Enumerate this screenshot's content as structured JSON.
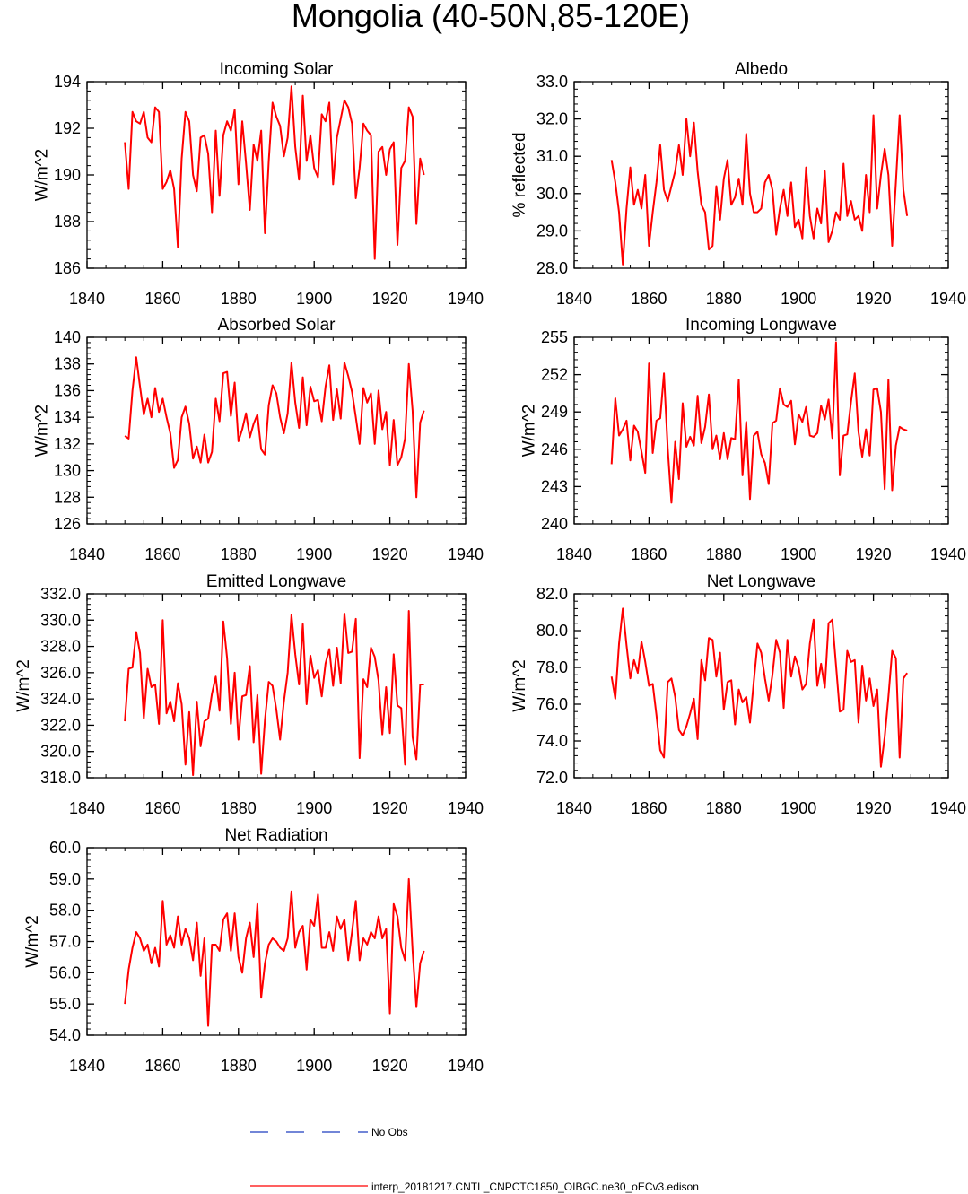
{
  "figure": {
    "title": "Mongolia (40-50N,85-120E)"
  },
  "chart_data": [
    {
      "type": "line",
      "title": "Incoming Solar",
      "xlabel": "",
      "ylabel": "W/m^2",
      "xlim": [
        1840,
        1940
      ],
      "ylim": [
        186,
        194
      ],
      "xticks": [
        "1840",
        "1860",
        "1880",
        "1900",
        "1920",
        "1940"
      ],
      "yticks": [
        "186",
        "188",
        "190",
        "192",
        "194"
      ],
      "x_start": 1850,
      "series": [
        {
          "name": "interp_20181217.CNTL_CNPCTC1850_OIBGC.ne30_oECv3.edison",
          "color": "#ff0000",
          "values": [
            191.4,
            189.4,
            192.7,
            192.3,
            192.2,
            192.7,
            191.6,
            191.4,
            192.9,
            192.7,
            189.4,
            189.7,
            190.2,
            189.4,
            186.9,
            190.7,
            192.7,
            192.3,
            190.0,
            189.3,
            191.6,
            191.7,
            190.9,
            188.4,
            191.9,
            189.1,
            191.7,
            192.3,
            191.9,
            192.8,
            189.6,
            192.3,
            190.5,
            188.5,
            191.3,
            190.6,
            191.9,
            187.5,
            190.6,
            193.1,
            192.5,
            192.1,
            190.8,
            191.6,
            193.8,
            191.2,
            189.8,
            193.4,
            190.6,
            191.7,
            190.3,
            189.9,
            192.6,
            192.3,
            193.1,
            189.6,
            191.6,
            192.4,
            193.2,
            192.9,
            192.2,
            189.0,
            190.3,
            192.2,
            191.9,
            191.7,
            186.4,
            191.0,
            191.2,
            190.0,
            191.1,
            191.4,
            187.0,
            190.3,
            190.6,
            192.9,
            192.5,
            187.9,
            190.7,
            190.0
          ]
        }
      ]
    },
    {
      "type": "line",
      "title": "Albedo",
      "xlabel": "",
      "ylabel": "% reflected",
      "xlim": [
        1840,
        1940
      ],
      "ylim": [
        28.0,
        33.0
      ],
      "xticks": [
        "1840",
        "1860",
        "1880",
        "1900",
        "1920",
        "1940"
      ],
      "yticks": [
        "28.0",
        "29.0",
        "30.0",
        "31.0",
        "32.0",
        "33.0"
      ],
      "x_start": 1850,
      "series": [
        {
          "name": "interp_20181217.CNTL_CNPCTC1850_OIBGC.ne30_oECv3.edison",
          "color": "#ff0000",
          "values": [
            30.9,
            30.3,
            29.5,
            28.1,
            29.6,
            30.7,
            29.7,
            30.1,
            29.6,
            30.5,
            28.6,
            29.5,
            30.3,
            31.3,
            30.1,
            29.8,
            30.2,
            30.6,
            31.3,
            30.5,
            32.0,
            31.0,
            31.9,
            30.6,
            29.7,
            29.5,
            28.5,
            28.6,
            30.2,
            29.3,
            30.4,
            30.9,
            29.7,
            29.9,
            30.4,
            29.7,
            31.6,
            30.0,
            29.5,
            29.5,
            29.6,
            30.3,
            30.5,
            30.1,
            28.9,
            29.6,
            30.1,
            29.4,
            30.3,
            29.1,
            29.3,
            28.8,
            30.7,
            29.4,
            28.8,
            29.6,
            29.2,
            30.6,
            28.7,
            29.0,
            29.5,
            29.3,
            30.8,
            29.4,
            29.8,
            29.3,
            29.4,
            29.0,
            30.5,
            29.5,
            32.1,
            29.6,
            30.5,
            31.2,
            30.5,
            28.6,
            30.3,
            32.1,
            30.1,
            29.4
          ]
        }
      ]
    },
    {
      "type": "line",
      "title": "Absorbed Solar",
      "xlabel": "",
      "ylabel": "W/m^2",
      "xlim": [
        1840,
        1940
      ],
      "ylim": [
        126,
        140
      ],
      "xticks": [
        "1840",
        "1860",
        "1880",
        "1900",
        "1920",
        "1940"
      ],
      "yticks": [
        "126",
        "128",
        "130",
        "132",
        "134",
        "136",
        "138",
        "140"
      ],
      "x_start": 1850,
      "series": [
        {
          "name": "interp_20181217.CNTL_CNPCTC1850_OIBGC.ne30_oECv3.edison",
          "color": "#ff0000",
          "values": [
            132.6,
            132.4,
            136.0,
            138.5,
            136.3,
            134.2,
            135.4,
            134.0,
            136.2,
            134.4,
            135.4,
            134.0,
            132.8,
            130.2,
            130.8,
            134.0,
            134.8,
            133.5,
            130.9,
            131.8,
            130.6,
            132.7,
            130.6,
            131.4,
            135.4,
            133.7,
            137.3,
            137.4,
            134.1,
            136.6,
            132.2,
            133.1,
            134.3,
            132.5,
            133.5,
            134.2,
            131.6,
            131.2,
            134.9,
            136.4,
            135.8,
            134.0,
            132.8,
            134.3,
            138.1,
            135.1,
            133.2,
            137.0,
            133.4,
            136.3,
            135.2,
            135.3,
            133.7,
            136.3,
            137.9,
            133.8,
            136.1,
            133.9,
            138.1,
            137.1,
            135.9,
            134.0,
            132.0,
            136.2,
            135.1,
            135.8,
            132.0,
            136.0,
            133.1,
            134.4,
            130.4,
            133.8,
            130.4,
            131.0,
            132.4,
            138.0,
            134.5,
            128.0,
            133.6,
            134.5
          ]
        }
      ]
    },
    {
      "type": "line",
      "title": "Incoming Longwave",
      "xlabel": "",
      "ylabel": "W/m^2",
      "xlim": [
        1840,
        1940
      ],
      "ylim": [
        240,
        255
      ],
      "xticks": [
        "1840",
        "1860",
        "1880",
        "1900",
        "1920",
        "1940"
      ],
      "yticks": [
        "240",
        "243",
        "246",
        "249",
        "252",
        "255"
      ],
      "x_start": 1850,
      "series": [
        {
          "name": "interp_20181217.CNTL_CNPCTC1850_OIBGC.ne30_oECv3.edison",
          "color": "#ff0000",
          "values": [
            244.8,
            250.1,
            247.1,
            247.6,
            248.3,
            245.1,
            247.9,
            247.4,
            245.8,
            244.1,
            252.9,
            245.7,
            248.3,
            248.5,
            252.1,
            246.1,
            241.7,
            246.6,
            243.6,
            249.7,
            246.2,
            247.0,
            246.3,
            250.3,
            246.5,
            247.8,
            250.4,
            246.0,
            247.1,
            245.2,
            247.3,
            245.2,
            246.9,
            246.8,
            251.6,
            243.9,
            248.2,
            242.0,
            247.1,
            247.4,
            245.6,
            244.9,
            243.2,
            248.1,
            248.3,
            250.9,
            249.6,
            249.4,
            249.9,
            246.4,
            248.8,
            248.2,
            249.4,
            247.1,
            247.0,
            247.3,
            249.5,
            248.4,
            250.0,
            246.9,
            254.6,
            243.9,
            247.1,
            247.2,
            249.8,
            252.1,
            247.4,
            245.4,
            247.6,
            245.5,
            250.8,
            250.9,
            249.0,
            242.8,
            251.6,
            242.7,
            246.3,
            247.8,
            247.6,
            247.5
          ]
        }
      ]
    },
    {
      "type": "line",
      "title": "Emitted Longwave",
      "xlabel": "",
      "ylabel": "W/m^2",
      "xlim": [
        1840,
        1940
      ],
      "ylim": [
        318.0,
        332.0
      ],
      "xticks": [
        "1840",
        "1860",
        "1880",
        "1900",
        "1920",
        "1940"
      ],
      "yticks": [
        "318.0",
        "320.0",
        "322.0",
        "324.0",
        "326.0",
        "328.0",
        "330.0",
        "332.0"
      ],
      "x_start": 1850,
      "series": [
        {
          "name": "interp_20181217.CNTL_CNPCTC1850_OIBGC.ne30_oECv3.edison",
          "color": "#ff0000",
          "values": [
            322.3,
            326.3,
            326.4,
            329.1,
            327.5,
            322.5,
            326.3,
            324.9,
            325.1,
            322.1,
            330.0,
            322.9,
            323.8,
            322.3,
            325.2,
            323.6,
            319.0,
            323.0,
            318.2,
            323.8,
            320.4,
            322.3,
            322.5,
            324.4,
            325.7,
            323.1,
            329.9,
            327.1,
            322.1,
            326.0,
            320.9,
            324.2,
            324.3,
            326.5,
            320.7,
            324.3,
            318.3,
            322.4,
            325.3,
            325.0,
            323.2,
            320.9,
            323.8,
            326.0,
            330.4,
            327.4,
            325.1,
            329.7,
            323.6,
            327.3,
            325.6,
            326.2,
            324.2,
            326.7,
            327.8,
            325.0,
            327.9,
            325.2,
            330.5,
            327.5,
            327.6,
            330.1,
            319.5,
            325.5,
            324.9,
            327.9,
            327.2,
            325.4,
            321.3,
            324.9,
            321.4,
            327.4,
            323.5,
            323.3,
            319.0,
            330.7,
            321.1,
            319.4,
            325.1,
            325.1
          ]
        }
      ]
    },
    {
      "type": "line",
      "title": "Net Longwave",
      "xlabel": "",
      "ylabel": "W/m^2",
      "xlim": [
        1840,
        1940
      ],
      "ylim": [
        72.0,
        82.0
      ],
      "xticks": [
        "1840",
        "1860",
        "1880",
        "1900",
        "1920",
        "1940"
      ],
      "yticks": [
        "72.0",
        "74.0",
        "76.0",
        "78.0",
        "80.0",
        "82.0"
      ],
      "x_start": 1850,
      "series": [
        {
          "name": "interp_20181217.CNTL_CNPCTC1850_OIBGC.ne30_oECv3.edison",
          "color": "#ff0000",
          "values": [
            77.5,
            76.3,
            79.3,
            81.2,
            79.2,
            77.4,
            78.4,
            77.7,
            79.4,
            78.3,
            77.0,
            77.1,
            75.4,
            73.5,
            73.1,
            77.2,
            77.4,
            76.4,
            74.6,
            74.3,
            74.8,
            75.5,
            76.3,
            74.1,
            78.4,
            77.3,
            79.6,
            79.5,
            77.5,
            78.8,
            75.7,
            77.2,
            77.3,
            74.9,
            76.8,
            76.1,
            76.4,
            75.0,
            77.2,
            79.3,
            78.8,
            77.4,
            76.2,
            77.6,
            79.5,
            78.8,
            75.8,
            79.5,
            77.5,
            78.6,
            78.0,
            76.8,
            77.1,
            79.3,
            80.6,
            77.0,
            78.2,
            76.9,
            80.4,
            80.6,
            78.1,
            75.6,
            75.7,
            78.9,
            78.3,
            78.4,
            75.0,
            78.1,
            76.2,
            77.4,
            75.9,
            76.8,
            72.6,
            74.2,
            76.4,
            78.9,
            78.5,
            73.1,
            77.4,
            77.7
          ]
        }
      ]
    },
    {
      "type": "line",
      "title": "Net Radiation",
      "xlabel": "",
      "ylabel": "W/m^2",
      "xlim": [
        1840,
        1940
      ],
      "ylim": [
        54.0,
        60.0
      ],
      "xticks": [
        "1840",
        "1860",
        "1880",
        "1900",
        "1920",
        "1940"
      ],
      "yticks": [
        "54.0",
        "55.0",
        "56.0",
        "57.0",
        "58.0",
        "59.0",
        "60.0"
      ],
      "x_start": 1850,
      "series": [
        {
          "name": "interp_20181217.CNTL_CNPCTC1850_OIBGC.ne30_oECv3.edison",
          "color": "#ff0000",
          "values": [
            55.0,
            56.1,
            56.8,
            57.3,
            57.1,
            56.7,
            56.9,
            56.3,
            56.8,
            56.2,
            58.3,
            56.9,
            57.2,
            56.8,
            57.8,
            56.9,
            57.4,
            57.1,
            56.4,
            57.6,
            55.9,
            57.1,
            54.3,
            56.9,
            56.9,
            56.7,
            57.7,
            57.9,
            56.7,
            57.9,
            56.5,
            56.0,
            57.1,
            57.6,
            56.5,
            58.2,
            55.2,
            56.3,
            56.9,
            57.1,
            57.0,
            56.8,
            56.7,
            57.1,
            58.6,
            56.8,
            57.3,
            57.5,
            56.1,
            57.7,
            57.5,
            58.5,
            56.8,
            56.8,
            57.3,
            56.7,
            57.8,
            57.4,
            57.7,
            56.4,
            57.3,
            58.3,
            56.4,
            57.1,
            56.9,
            57.3,
            57.1,
            57.8,
            57.1,
            57.4,
            54.7,
            58.2,
            57.8,
            56.8,
            56.4,
            59.0,
            56.7,
            54.9,
            56.3,
            56.7
          ]
        }
      ]
    }
  ],
  "legend": {
    "no_obs_label": "No Obs",
    "no_obs_color": "#1f3fbf",
    "model_label": "interp_20181217.CNTL_CNPCTC1850_OIBGC.ne30_oECv3.edison",
    "model_color": "#ff0000"
  }
}
